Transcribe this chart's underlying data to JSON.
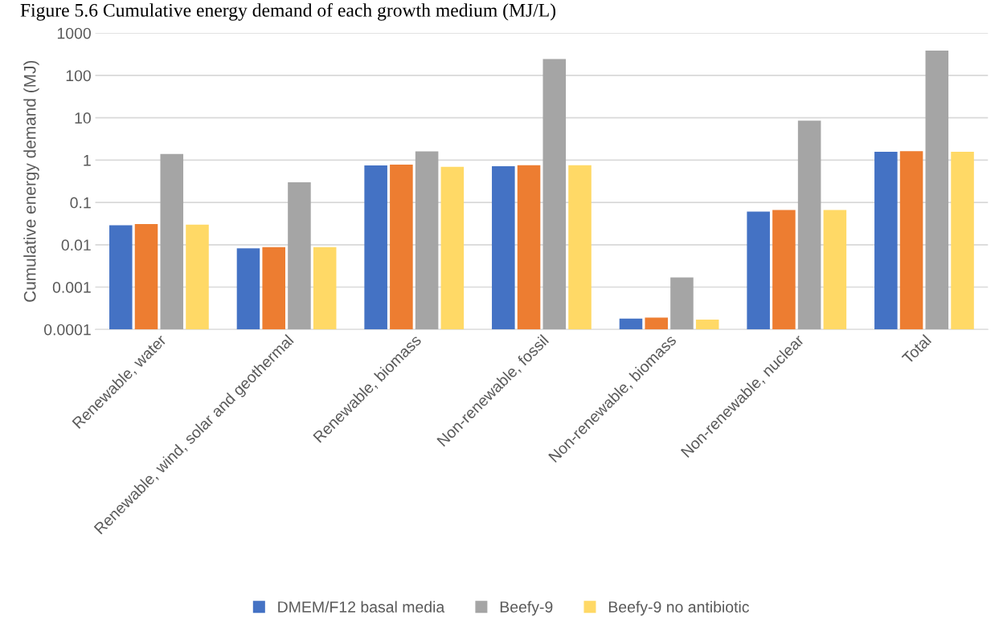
{
  "chart_data": {
    "type": "bar",
    "title": "Figure 5.6 Cumulative energy demand of each growth medium (MJ/L)",
    "ylabel": "Cumulative energy demand (MJ)",
    "categories": [
      "Renewable, water",
      "Renewable, wind, solar and geothermal",
      "Renewable, biomass",
      "Non-renewable, fossil",
      "Non-renewable, biomass",
      "Non-renewable, nuclear",
      "Total"
    ],
    "series": [
      {
        "name": "DMEM/F12 basal media",
        "color": "#4472c4",
        "values": [
          0.029,
          0.0082,
          0.75,
          0.72,
          0.00018,
          0.061,
          1.57
        ]
      },
      {
        "color": "#ed7d31",
        "values": [
          0.031,
          0.0088,
          0.78,
          0.76,
          0.00019,
          0.066,
          1.63
        ]
      },
      {
        "name": "Beefy-9",
        "color": "#a5a5a5",
        "values": [
          1.4,
          0.3,
          1.6,
          245,
          0.0017,
          8.5,
          384
        ]
      },
      {
        "name": "Beefy-9 no antibiotic",
        "color": "#ffd966",
        "values": [
          0.03,
          0.0088,
          0.69,
          0.76,
          0.00017,
          0.066,
          1.57
        ]
      }
    ],
    "log": "y",
    "ylim": [
      0.0001,
      1000
    ],
    "yticks": [
      0.0001,
      0.001,
      0.01,
      0.1,
      1,
      10,
      100,
      1000
    ],
    "grid": "y",
    "legend": "bottom"
  }
}
